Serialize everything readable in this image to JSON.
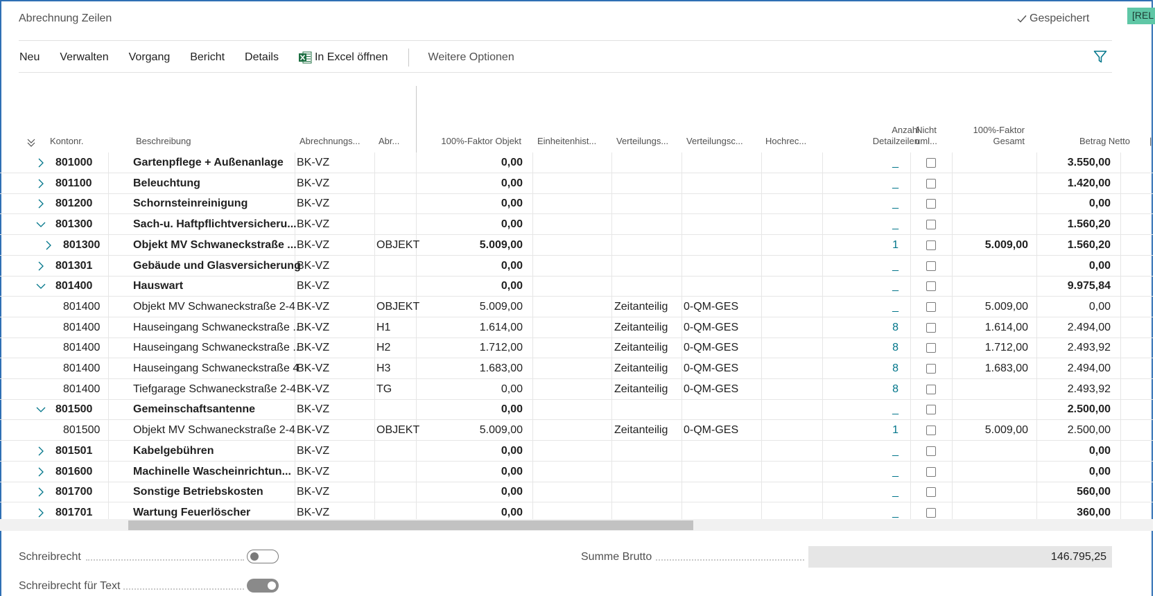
{
  "page": {
    "title": "Abrechnung Zeilen",
    "saved_status": "Gespeichert",
    "badge": "[REL"
  },
  "toolbar": {
    "neu": "Neu",
    "verwalten": "Verwalten",
    "vorgang": "Vorgang",
    "bericht": "Bericht",
    "details": "Details",
    "excel": "In Excel öffnen",
    "more": "Weitere Optionen"
  },
  "columns": {
    "kontonr": "Kontonr.",
    "beschreibung": "Beschreibung",
    "abrechnungs": "Abrechnungs...",
    "abr": "Abr...",
    "faktor_objekt": "100%-Faktor Objekt",
    "einheitenhist": "Einheitenhist...",
    "verteilungs": "Verteilungs...",
    "verteilungsc": "Verteilungsc...",
    "hochrec": "Hochrec...",
    "anzahl_1": "Anzahl",
    "anzahl_2": "Detailzeilen",
    "nicht_1": "Nicht",
    "nicht_2": "uml...",
    "faktor_gesamt_1": "100%-Faktor",
    "faktor_gesamt_2": "Gesamt",
    "betrag_netto": "Betrag Netto"
  },
  "rows": [
    {
      "expander": "right",
      "level": 0,
      "bold": true,
      "kontonr": "801000",
      "beschreibung": "Gartenpflege  + Außenanlage",
      "abrechnungs": "BK-VZ",
      "abr": "",
      "faktor_objekt": "0,00",
      "verteilungs": "",
      "verteilungsc": "",
      "anzahl": "_",
      "nicht_uml": false,
      "faktor_gesamt": "",
      "betrag_netto": "3.550,00"
    },
    {
      "expander": "right",
      "level": 0,
      "bold": true,
      "kontonr": "801100",
      "beschreibung": "Beleuchtung",
      "abrechnungs": "BK-VZ",
      "abr": "",
      "faktor_objekt": "0,00",
      "verteilungs": "",
      "verteilungsc": "",
      "anzahl": "_",
      "nicht_uml": false,
      "faktor_gesamt": "",
      "betrag_netto": "1.420,00"
    },
    {
      "expander": "right",
      "level": 0,
      "bold": true,
      "kontonr": "801200",
      "beschreibung": "Schornsteinreinigung",
      "abrechnungs": "BK-VZ",
      "abr": "",
      "faktor_objekt": "0,00",
      "verteilungs": "",
      "verteilungsc": "",
      "anzahl": "_",
      "nicht_uml": false,
      "faktor_gesamt": "",
      "betrag_netto": "0,00"
    },
    {
      "expander": "down",
      "level": 0,
      "bold": true,
      "kontonr": "801300",
      "beschreibung": "Sach-u. Haftpflichtversicheru...",
      "abrechnungs": "BK-VZ",
      "abr": "",
      "faktor_objekt": "0,00",
      "verteilungs": "",
      "verteilungsc": "",
      "anzahl": "_",
      "nicht_uml": false,
      "faktor_gesamt": "",
      "betrag_netto": "1.560,20"
    },
    {
      "expander": "right",
      "level": 1,
      "bold": true,
      "kontonr": "801300",
      "beschreibung": "Objekt MV Schwaneckstraße ...",
      "abrechnungs": "BK-VZ",
      "abr": "OBJEKT",
      "faktor_objekt": "5.009,00",
      "verteilungs": "",
      "verteilungsc": "",
      "anzahl": "1",
      "nicht_uml": false,
      "faktor_gesamt": "5.009,00",
      "betrag_netto": "1.560,20"
    },
    {
      "expander": "right",
      "level": 0,
      "bold": true,
      "kontonr": "801301",
      "beschreibung": "Gebäude und Glasversicherung",
      "abrechnungs": "BK-VZ",
      "abr": "",
      "faktor_objekt": "0,00",
      "verteilungs": "",
      "verteilungsc": "",
      "anzahl": "_",
      "nicht_uml": false,
      "faktor_gesamt": "",
      "betrag_netto": "0,00"
    },
    {
      "expander": "down",
      "level": 0,
      "bold": true,
      "kontonr": "801400",
      "beschreibung": "Hauswart",
      "abrechnungs": "BK-VZ",
      "abr": "",
      "faktor_objekt": "0,00",
      "verteilungs": "",
      "verteilungsc": "",
      "anzahl": "_",
      "nicht_uml": false,
      "faktor_gesamt": "",
      "betrag_netto": "9.975,84"
    },
    {
      "expander": "none",
      "level": 1,
      "bold": false,
      "kontonr": "801400",
      "beschreibung": "Objekt MV Schwaneckstraße 2-4",
      "abrechnungs": "BK-VZ",
      "abr": "OBJEKT",
      "faktor_objekt": "5.009,00",
      "verteilungs": "Zeitanteilig",
      "verteilungsc": "0-QM-GES",
      "anzahl": "_",
      "nicht_uml": false,
      "faktor_gesamt": "5.009,00",
      "betrag_netto": "0,00"
    },
    {
      "expander": "none",
      "level": 1,
      "bold": false,
      "kontonr": "801400",
      "beschreibung": "Hauseingang Schwaneckstraße ...",
      "abrechnungs": "BK-VZ",
      "abr": "H1",
      "faktor_objekt": "1.614,00",
      "verteilungs": "Zeitanteilig",
      "verteilungsc": "0-QM-GES",
      "anzahl": "8",
      "nicht_uml": false,
      "faktor_gesamt": "1.614,00",
      "betrag_netto": "2.494,00"
    },
    {
      "expander": "none",
      "level": 1,
      "bold": false,
      "kontonr": "801400",
      "beschreibung": "Hauseingang Schwaneckstraße ...",
      "abrechnungs": "BK-VZ",
      "abr": "H2",
      "faktor_objekt": "1.712,00",
      "verteilungs": "Zeitanteilig",
      "verteilungsc": "0-QM-GES",
      "anzahl": "8",
      "nicht_uml": false,
      "faktor_gesamt": "1.712,00",
      "betrag_netto": "2.493,92"
    },
    {
      "expander": "none",
      "level": 1,
      "bold": false,
      "kontonr": "801400",
      "beschreibung": "Hauseingang Schwaneckstraße 4",
      "abrechnungs": "BK-VZ",
      "abr": "H3",
      "faktor_objekt": "1.683,00",
      "verteilungs": "Zeitanteilig",
      "verteilungsc": "0-QM-GES",
      "anzahl": "8",
      "nicht_uml": false,
      "faktor_gesamt": "1.683,00",
      "betrag_netto": "2.494,00"
    },
    {
      "expander": "none",
      "level": 1,
      "bold": false,
      "kontonr": "801400",
      "beschreibung": "Tiefgarage Schwaneckstraße 2-4",
      "abrechnungs": "BK-VZ",
      "abr": "TG",
      "faktor_objekt": "0,00",
      "verteilungs": "Zeitanteilig",
      "verteilungsc": "0-QM-GES",
      "anzahl": "8",
      "nicht_uml": false,
      "faktor_gesamt": "",
      "betrag_netto": "2.493,92"
    },
    {
      "expander": "down",
      "level": 0,
      "bold": true,
      "kontonr": "801500",
      "beschreibung": "Gemeinschaftsantenne",
      "abrechnungs": "BK-VZ",
      "abr": "",
      "faktor_objekt": "0,00",
      "verteilungs": "",
      "verteilungsc": "",
      "anzahl": "_",
      "nicht_uml": false,
      "faktor_gesamt": "",
      "betrag_netto": "2.500,00"
    },
    {
      "expander": "none",
      "level": 1,
      "bold": false,
      "kontonr": "801500",
      "beschreibung": "Objekt MV Schwaneckstraße 2-4",
      "abrechnungs": "BK-VZ",
      "abr": "OBJEKT",
      "faktor_objekt": "5.009,00",
      "verteilungs": "Zeitanteilig",
      "verteilungsc": "0-QM-GES",
      "anzahl": "1",
      "nicht_uml": false,
      "faktor_gesamt": "5.009,00",
      "betrag_netto": "2.500,00"
    },
    {
      "expander": "right",
      "level": 0,
      "bold": true,
      "kontonr": "801501",
      "beschreibung": "Kabelgebühren",
      "abrechnungs": "BK-VZ",
      "abr": "",
      "faktor_objekt": "0,00",
      "verteilungs": "",
      "verteilungsc": "",
      "anzahl": "_",
      "nicht_uml": false,
      "faktor_gesamt": "",
      "betrag_netto": "0,00"
    },
    {
      "expander": "right",
      "level": 0,
      "bold": true,
      "kontonr": "801600",
      "beschreibung": "Machinelle Wascheinrichtun...",
      "abrechnungs": "BK-VZ",
      "abr": "",
      "faktor_objekt": "0,00",
      "verteilungs": "",
      "verteilungsc": "",
      "anzahl": "_",
      "nicht_uml": false,
      "faktor_gesamt": "",
      "betrag_netto": "0,00"
    },
    {
      "expander": "right",
      "level": 0,
      "bold": true,
      "kontonr": "801700",
      "beschreibung": "Sonstige Betriebskosten",
      "abrechnungs": "BK-VZ",
      "abr": "",
      "faktor_objekt": "0,00",
      "verteilungs": "",
      "verteilungsc": "",
      "anzahl": "_",
      "nicht_uml": false,
      "faktor_gesamt": "",
      "betrag_netto": "560,00"
    },
    {
      "expander": "right",
      "level": 0,
      "bold": true,
      "kontonr": "801701",
      "beschreibung": "Wartung Feuerlöscher",
      "abrechnungs": "BK-VZ",
      "abr": "",
      "faktor_objekt": "0,00",
      "verteilungs": "",
      "verteilungsc": "",
      "anzahl": "_",
      "nicht_uml": false,
      "faktor_gesamt": "",
      "betrag_netto": "360,00"
    }
  ],
  "footer": {
    "schreibrecht": "Schreibrecht",
    "schreibrecht_on": false,
    "schreibrecht_text": "Schreibrecht für Text",
    "schreibrecht_text_on": true,
    "summe_brutto_label": "Summe Brutto",
    "summe_brutto_value": "146.795,25"
  },
  "colors": {
    "accent": "#00758a",
    "frame": "#2f6fb4",
    "badge": "#5fc7a6",
    "excel": "#1d6f42"
  }
}
